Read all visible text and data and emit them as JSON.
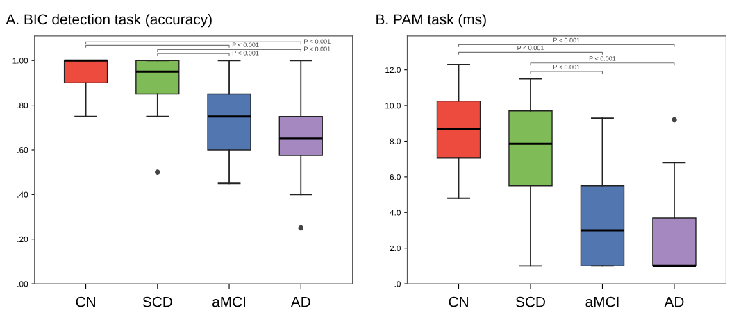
{
  "chart_data": [
    {
      "type": "box",
      "title": "A. BIC detection task (accuracy)",
      "categories": [
        "CN",
        "SCD",
        "aMCI",
        "AD"
      ],
      "colors": [
        "#ee4b3f",
        "#7fbb56",
        "#5276b0",
        "#a588c0"
      ],
      "boxes": [
        {
          "low": 0.75,
          "q1": 0.9,
          "median": 1.0,
          "q3": 1.0,
          "high": 1.0
        },
        {
          "low": 0.75,
          "q1": 0.85,
          "median": 0.95,
          "q3": 1.0,
          "high": 1.0,
          "outliers": [
            0.5
          ]
        },
        {
          "low": 0.45,
          "q1": 0.6,
          "median": 0.75,
          "q3": 0.85,
          "high": 1.0
        },
        {
          "low": 0.4,
          "q1": 0.575,
          "median": 0.65,
          "q3": 0.75,
          "high": 1.0,
          "outliers": [
            0.25
          ]
        }
      ],
      "ylim": [
        0,
        1.11
      ],
      "yticks": [
        {
          "value": 0,
          "label": ".00"
        },
        {
          "value": 0.2,
          "label": ".20"
        },
        {
          "value": 0.4,
          "label": ".40"
        },
        {
          "value": 0.6,
          "label": ".60"
        },
        {
          "value": 0.8,
          "label": ".80"
        },
        {
          "value": 1.0,
          "label": "1.00"
        }
      ],
      "grid": false,
      "annotations": [
        "P < 0.001",
        "P < 0.001",
        "P < 0.001",
        "P < 0.001"
      ]
    },
    {
      "type": "box",
      "title": "B. PAM task (ms)",
      "categories": [
        "CN",
        "SCD",
        "aMCI",
        "AD"
      ],
      "colors": [
        "#ee4b3f",
        "#7fbb56",
        "#5276b0",
        "#a588c0"
      ],
      "boxes": [
        {
          "low": 4.8,
          "q1": 7.05,
          "median": 8.7,
          "q3": 10.25,
          "high": 12.3
        },
        {
          "low": 1.0,
          "q1": 5.5,
          "median": 7.85,
          "q3": 9.7,
          "high": 11.5
        },
        {
          "low": 1.0,
          "q1": 1.0,
          "median": 3.0,
          "q3": 5.5,
          "high": 9.3
        },
        {
          "low": 1.0,
          "q1": 1.0,
          "median": 1.0,
          "q3": 3.7,
          "high": 6.8,
          "outliers": [
            9.2
          ]
        }
      ],
      "ylim": [
        0,
        13.9
      ],
      "yticks": [
        {
          "value": 0,
          "label": ".0"
        },
        {
          "value": 2,
          "label": "2.0"
        },
        {
          "value": 4,
          "label": "4.0"
        },
        {
          "value": 6,
          "label": "6.0"
        },
        {
          "value": 8,
          "label": "8.0"
        },
        {
          "value": 10,
          "label": "10.0"
        },
        {
          "value": 12,
          "label": "12.0"
        }
      ],
      "grid": false,
      "annotations": [
        "P < 0.001",
        "P < 0.001",
        "P < 0.001",
        "P < 0.001"
      ]
    }
  ]
}
